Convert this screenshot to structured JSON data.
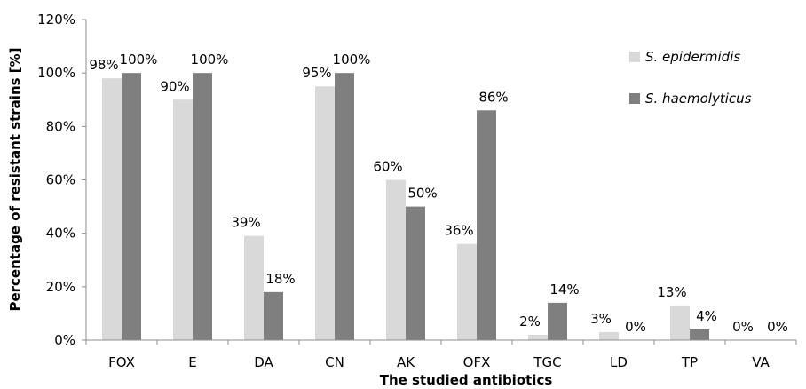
{
  "chart_data": {
    "type": "bar",
    "xlabel": "The studied antibiotics",
    "ylabel": "Percentage of resistant strains [%]",
    "ylim": [
      0,
      120
    ],
    "yticks": [
      "0%",
      "20%",
      "40%",
      "60%",
      "80%",
      "100%",
      "120%"
    ],
    "grid": false,
    "legend_position": "top-right",
    "categories": [
      "FOX",
      "E",
      "DA",
      "CN",
      "AK",
      "OFX",
      "TGC",
      "LD",
      "TP",
      "VA"
    ],
    "series": [
      {
        "name": "S. epidermidis",
        "color": "#d9d9d9",
        "values": [
          98,
          90,
          39,
          95,
          60,
          36,
          2,
          3,
          13,
          0
        ],
        "labels": [
          "98%",
          "90%",
          "39%",
          "95%",
          "60%",
          "36%",
          "2%",
          "3%",
          "13%",
          "0%"
        ]
      },
      {
        "name": "S. haemolyticus",
        "color": "#7f7f7f",
        "values": [
          100,
          100,
          18,
          100,
          50,
          86,
          14,
          0,
          4,
          0
        ],
        "labels": [
          "100%",
          "100%",
          "18%",
          "100%",
          "50%",
          "86%",
          "14%",
          "0%",
          "4%",
          "0%"
        ]
      }
    ]
  }
}
